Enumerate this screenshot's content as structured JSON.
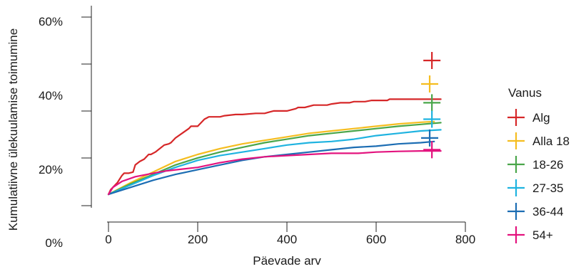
{
  "chart_data": {
    "type": "line",
    "xlabel": "Päevade arv",
    "ylabel": "Kumulatiivne ülekuulamise toimumine",
    "xlim": [
      -20,
      830
    ],
    "ylim": [
      0,
      0.65
    ],
    "x_ticks": [
      0,
      200,
      400,
      600,
      800
    ],
    "x_tick_labels": [
      "0",
      "200",
      "400",
      "600",
      "800"
    ],
    "y_ticks": [
      0.0,
      0.2,
      0.4,
      0.6
    ],
    "y_tick_labels": [
      "0%",
      "20%",
      "40%",
      "60%"
    ],
    "grid": false,
    "legend": {
      "title": "Vanus",
      "position": "right"
    },
    "series": [
      {
        "name": "Alg",
        "color": "#d62728",
        "censor": [
          725,
          0.6
        ],
        "points": [
          [
            0,
            0.03
          ],
          [
            5,
            0.05
          ],
          [
            10,
            0.06
          ],
          [
            20,
            0.08
          ],
          [
            30,
            0.11
          ],
          [
            35,
            0.12
          ],
          [
            45,
            0.12
          ],
          [
            55,
            0.125
          ],
          [
            60,
            0.155
          ],
          [
            70,
            0.17
          ],
          [
            80,
            0.18
          ],
          [
            90,
            0.2
          ],
          [
            95,
            0.2
          ],
          [
            105,
            0.21
          ],
          [
            115,
            0.225
          ],
          [
            125,
            0.24
          ],
          [
            135,
            0.245
          ],
          [
            140,
            0.25
          ],
          [
            150,
            0.27
          ],
          [
            165,
            0.29
          ],
          [
            180,
            0.31
          ],
          [
            185,
            0.32
          ],
          [
            200,
            0.32
          ],
          [
            210,
            0.34
          ],
          [
            215,
            0.35
          ],
          [
            220,
            0.355
          ],
          [
            225,
            0.36
          ],
          [
            235,
            0.36
          ],
          [
            250,
            0.36
          ],
          [
            260,
            0.365
          ],
          [
            285,
            0.37
          ],
          [
            300,
            0.37
          ],
          [
            330,
            0.375
          ],
          [
            350,
            0.375
          ],
          [
            360,
            0.38
          ],
          [
            370,
            0.385
          ],
          [
            400,
            0.385
          ],
          [
            420,
            0.395
          ],
          [
            425,
            0.4
          ],
          [
            440,
            0.4
          ],
          [
            460,
            0.41
          ],
          [
            490,
            0.41
          ],
          [
            500,
            0.415
          ],
          [
            520,
            0.42
          ],
          [
            540,
            0.42
          ],
          [
            550,
            0.425
          ],
          [
            575,
            0.425
          ],
          [
            590,
            0.43
          ],
          [
            625,
            0.43
          ],
          [
            630,
            0.435
          ],
          [
            700,
            0.435
          ],
          [
            725,
            0.435
          ],
          [
            745,
            0.435
          ]
        ]
      },
      {
        "name": "Alla 18",
        "color": "#f5bd1f",
        "censor": [
          720,
          0.5
        ],
        "points": [
          [
            0,
            0.03
          ],
          [
            50,
            0.08
          ],
          [
            100,
            0.125
          ],
          [
            150,
            0.17
          ],
          [
            200,
            0.2
          ],
          [
            250,
            0.225
          ],
          [
            300,
            0.245
          ],
          [
            350,
            0.26
          ],
          [
            400,
            0.275
          ],
          [
            450,
            0.29
          ],
          [
            500,
            0.3
          ],
          [
            550,
            0.31
          ],
          [
            600,
            0.32
          ],
          [
            650,
            0.33
          ],
          [
            700,
            0.337
          ],
          [
            730,
            0.34
          ]
        ]
      },
      {
        "name": "18-26",
        "color": "#4aa64a",
        "censor": [
          725,
          0.42
        ],
        "points": [
          [
            0,
            0.03
          ],
          [
            50,
            0.075
          ],
          [
            100,
            0.115
          ],
          [
            150,
            0.155
          ],
          [
            200,
            0.185
          ],
          [
            250,
            0.21
          ],
          [
            300,
            0.23
          ],
          [
            350,
            0.25
          ],
          [
            400,
            0.265
          ],
          [
            450,
            0.28
          ],
          [
            500,
            0.29
          ],
          [
            550,
            0.3
          ],
          [
            600,
            0.31
          ],
          [
            650,
            0.32
          ],
          [
            700,
            0.328
          ],
          [
            745,
            0.335
          ]
        ]
      },
      {
        "name": "27-35",
        "color": "#1fb3e0",
        "censor": [
          725,
          0.35
        ],
        "points": [
          [
            0,
            0.03
          ],
          [
            50,
            0.07
          ],
          [
            100,
            0.11
          ],
          [
            150,
            0.145
          ],
          [
            200,
            0.175
          ],
          [
            250,
            0.195
          ],
          [
            300,
            0.21
          ],
          [
            350,
            0.225
          ],
          [
            400,
            0.24
          ],
          [
            450,
            0.25
          ],
          [
            500,
            0.255
          ],
          [
            550,
            0.265
          ],
          [
            600,
            0.28
          ],
          [
            650,
            0.29
          ],
          [
            700,
            0.3
          ],
          [
            745,
            0.305
          ]
        ]
      },
      {
        "name": "36-44",
        "color": "#1c6db3",
        "censor": [
          720,
          0.27
        ],
        "points": [
          [
            0,
            0.03
          ],
          [
            50,
            0.06
          ],
          [
            100,
            0.09
          ],
          [
            150,
            0.115
          ],
          [
            200,
            0.135
          ],
          [
            250,
            0.155
          ],
          [
            300,
            0.175
          ],
          [
            350,
            0.19
          ],
          [
            400,
            0.2
          ],
          [
            450,
            0.21
          ],
          [
            500,
            0.22
          ],
          [
            550,
            0.23
          ],
          [
            600,
            0.235
          ],
          [
            650,
            0.245
          ],
          [
            700,
            0.25
          ],
          [
            730,
            0.255
          ]
        ]
      },
      {
        "name": "54+",
        "color": "#e3137e",
        "censor": [
          725,
          0.22
        ],
        "points": [
          [
            0,
            0.03
          ],
          [
            10,
            0.06
          ],
          [
            30,
            0.085
          ],
          [
            60,
            0.105
          ],
          [
            100,
            0.12
          ],
          [
            130,
            0.13
          ],
          [
            200,
            0.145
          ],
          [
            250,
            0.165
          ],
          [
            300,
            0.18
          ],
          [
            350,
            0.19
          ],
          [
            400,
            0.195
          ],
          [
            450,
            0.2
          ],
          [
            500,
            0.205
          ],
          [
            560,
            0.205
          ],
          [
            600,
            0.21
          ],
          [
            650,
            0.213
          ],
          [
            700,
            0.215
          ],
          [
            745,
            0.215
          ]
        ]
      }
    ]
  }
}
